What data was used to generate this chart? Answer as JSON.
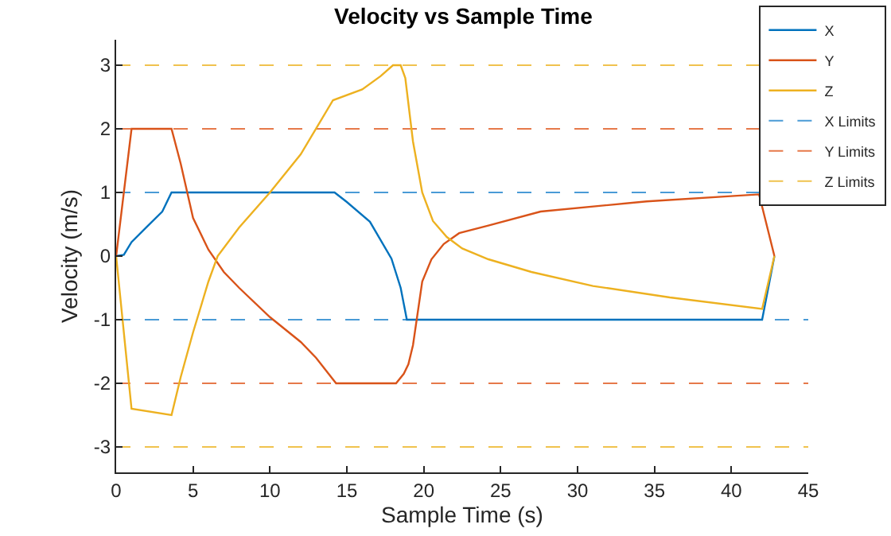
{
  "chart_data": {
    "type": "line",
    "title": "Velocity vs Sample Time",
    "xlabel": "Sample Time (s)",
    "ylabel": "Velocity (m/s)",
    "xlim": [
      0,
      45
    ],
    "xticks": [
      0,
      5,
      10,
      15,
      20,
      25,
      30,
      35,
      40,
      45
    ],
    "ylim": [
      -3.4,
      3.4
    ],
    "yticks": [
      -3,
      -2,
      -1,
      0,
      1,
      2,
      3
    ],
    "grid": false,
    "legend": "top right",
    "marker": "none",
    "series": [
      {
        "name": "X",
        "color": "#0072bd",
        "line_style": "solid",
        "x": [
          0,
          0.5,
          1,
          2,
          3,
          3.6,
          14.2,
          15,
          16.5,
          17.9,
          18.5,
          18.9,
          42,
          42.8
        ],
        "values": [
          0,
          0.02,
          0.22,
          0.46,
          0.7,
          1.0,
          1.0,
          0.85,
          0.54,
          -0.04,
          -0.5,
          -1.0,
          -1.0,
          0
        ]
      },
      {
        "name": "Y",
        "color": "#d95319",
        "line_style": "solid",
        "x": [
          0,
          1,
          3.6,
          4.2,
          5,
          6,
          7,
          8,
          10,
          12,
          13,
          14.3,
          18.2,
          18.7,
          19.0,
          19.3,
          19.9,
          20.5,
          21.3,
          22.3,
          24.2,
          27.6,
          34.5,
          41.8,
          42.8
        ],
        "values": [
          0,
          2.0,
          2.0,
          1.45,
          0.6,
          0.1,
          -0.25,
          -0.5,
          -0.96,
          -1.35,
          -1.6,
          -2.0,
          -2.0,
          -1.85,
          -1.7,
          -1.4,
          -0.4,
          -0.05,
          0.19,
          0.36,
          0.48,
          0.7,
          0.86,
          0.97,
          0
        ]
      },
      {
        "name": "Z",
        "color": "#edb120",
        "line_style": "solid",
        "x": [
          0,
          1,
          3.6,
          4.2,
          5,
          6,
          6.6,
          8,
          10,
          12,
          14.1,
          16,
          17.2,
          18,
          18.5,
          18.8,
          19.3,
          19.9,
          20.6,
          21.5,
          22.5,
          24.2,
          27,
          31,
          36,
          42,
          42.8
        ],
        "values": [
          0,
          -2.4,
          -2.5,
          -1.9,
          -1.2,
          -0.4,
          0,
          0.45,
          1.0,
          1.6,
          2.45,
          2.62,
          2.83,
          3.0,
          3.0,
          2.8,
          1.8,
          1.0,
          0.55,
          0.3,
          0.12,
          -0.05,
          -0.25,
          -0.47,
          -0.65,
          -0.83,
          0
        ]
      }
    ],
    "ref_lines": [
      {
        "axis": "y",
        "value": 1,
        "label": "X Limits",
        "color": "#4a9bd6",
        "line_style": "dashed"
      },
      {
        "axis": "y",
        "value": -1,
        "color": "#4a9bd6",
        "line_style": "dashed"
      },
      {
        "axis": "y",
        "value": 2,
        "label": "Y Limits",
        "color": "#e6794a",
        "line_style": "dashed"
      },
      {
        "axis": "y",
        "value": -2,
        "color": "#e6794a",
        "line_style": "dashed"
      },
      {
        "axis": "y",
        "value": 3,
        "label": "Z Limits",
        "color": "#f0c24e",
        "line_style": "dashed"
      },
      {
        "axis": "y",
        "value": -3,
        "color": "#f0c24e",
        "line_style": "dashed"
      }
    ]
  }
}
